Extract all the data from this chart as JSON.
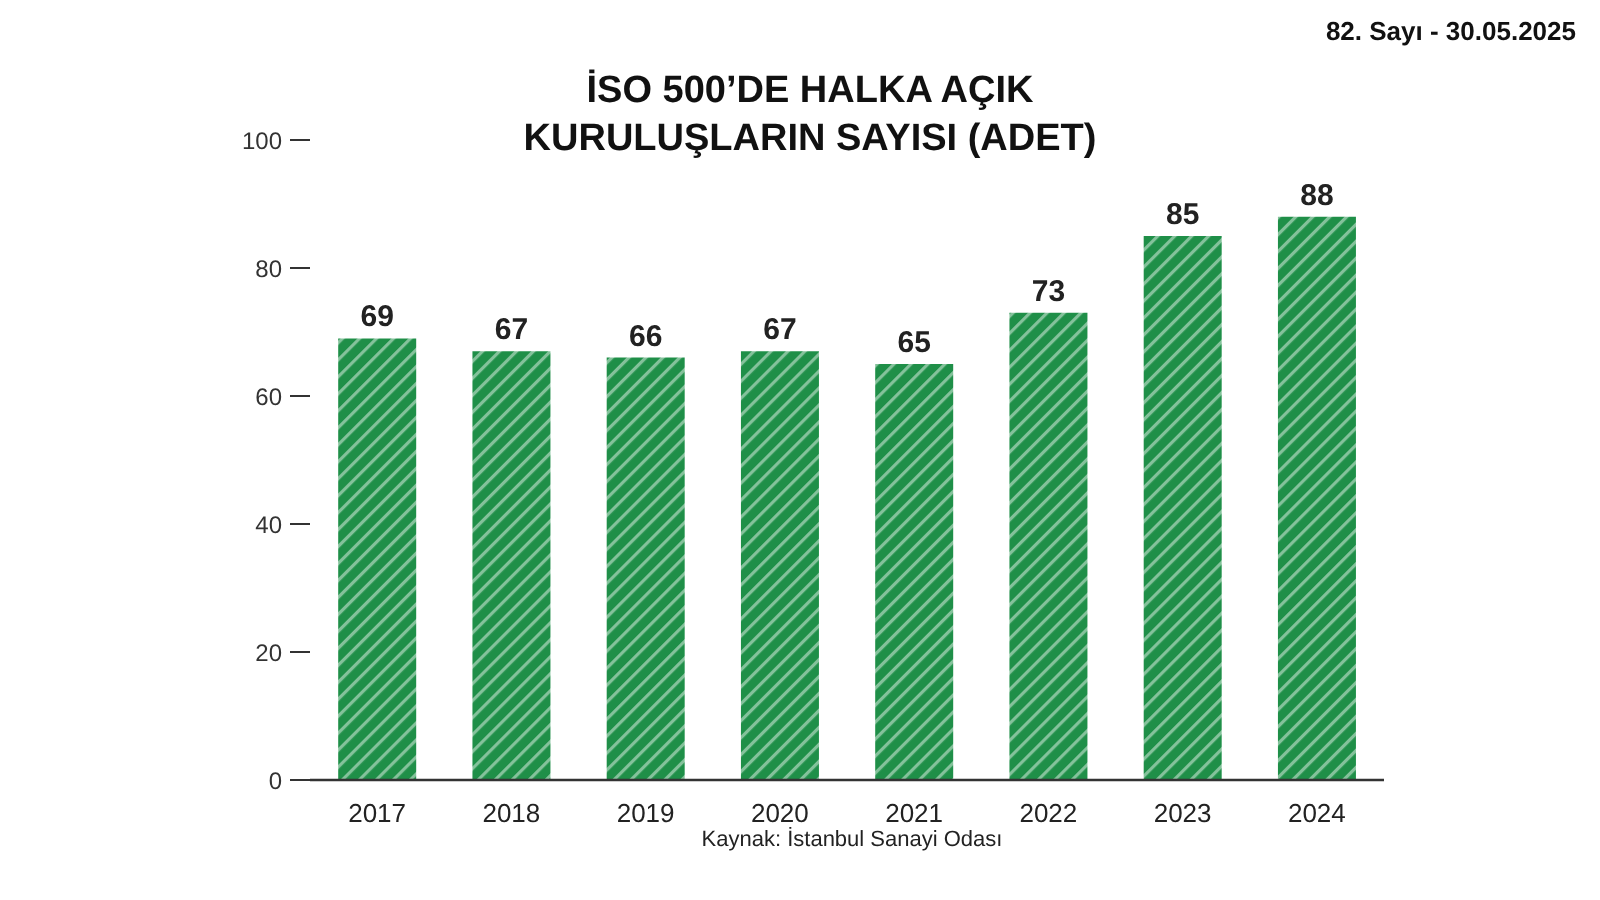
{
  "chart_data": {
    "type": "bar",
    "title": "İSO 500’DE HALKA AÇIK KURULUŞLARIN SAYISI (ADET)",
    "categories": [
      "2017",
      "2018",
      "2019",
      "2020",
      "2021",
      "2022",
      "2023",
      "2024"
    ],
    "values": [
      69,
      67,
      66,
      67,
      65,
      73,
      85,
      88
    ],
    "color": "#1f8f48",
    "ylim": [
      0,
      100
    ],
    "yticks": [
      0,
      20,
      40,
      60,
      80,
      100
    ],
    "data_labels": true,
    "annotations": [
      "82. Sayı - 30.05.2025",
      "Kaynak: İstanbul Sanayi Odası"
    ]
  }
}
